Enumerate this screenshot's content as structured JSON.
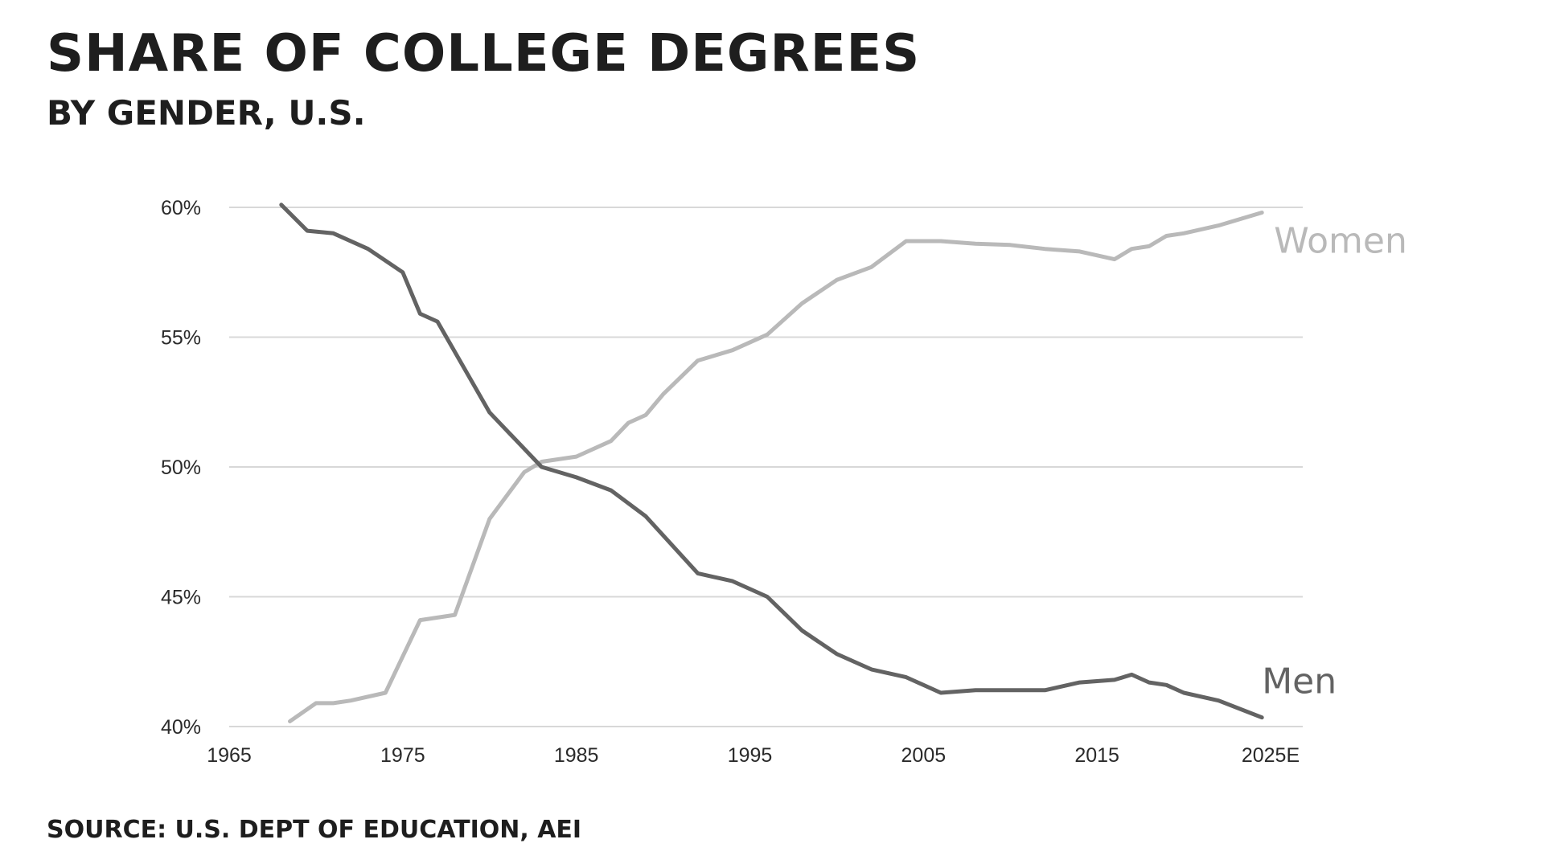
{
  "colors": {
    "women": "#b9b9b9",
    "men": "#636363",
    "grid": "#d8d8d8"
  },
  "chart_data": {
    "type": "line",
    "title": "SHARE OF COLLEGE DEGREES",
    "subtitle": "BY GENDER, U.S.",
    "source": "SOURCE: U.S. DEPT OF EDUCATION, AEI",
    "xlim": [
      1965,
      2025
    ],
    "ylim": [
      40,
      60
    ],
    "x_ticks": [
      {
        "value": 1965,
        "label": "1965"
      },
      {
        "value": 1975,
        "label": "1975"
      },
      {
        "value": 1985,
        "label": "1985"
      },
      {
        "value": 1995,
        "label": "1995"
      },
      {
        "value": 2005,
        "label": "2005"
      },
      {
        "value": 2015,
        "label": "2015"
      },
      {
        "value": 2025,
        "label": "2025E"
      }
    ],
    "y_ticks": [
      {
        "value": 60,
        "label": "60%"
      },
      {
        "value": 55,
        "label": "55%"
      },
      {
        "value": 50,
        "label": "50%"
      },
      {
        "value": 45,
        "label": "45%"
      },
      {
        "value": 40,
        "label": "40%"
      }
    ],
    "grid": true,
    "legend": "inline labels at line ends",
    "series": [
      {
        "name": "Women",
        "x": [
          1968.5,
          1970,
          1971,
          1972,
          1974,
          1975,
          1976,
          1978,
          1980,
          1982,
          1983,
          1985,
          1987,
          1988,
          1989,
          1990,
          1992,
          1994,
          1996,
          1998,
          2000,
          2002,
          2004,
          2006,
          2008,
          2010,
          2012,
          2014,
          2016,
          2017,
          2018,
          2019,
          2020,
          2022,
          2024.5
        ],
        "y": [
          40.2,
          40.9,
          40.9,
          41.0,
          41.3,
          42.7,
          44.1,
          44.3,
          48.0,
          49.8,
          50.2,
          50.4,
          51.0,
          51.7,
          52.0,
          52.8,
          54.1,
          54.5,
          55.1,
          56.3,
          57.2,
          57.7,
          58.7,
          58.7,
          58.6,
          58.55,
          58.4,
          58.3,
          58.0,
          58.4,
          58.5,
          58.9,
          59.0,
          59.3,
          59.8
        ]
      },
      {
        "name": "Men",
        "x": [
          1968,
          1969.5,
          1971,
          1973,
          1975,
          1976,
          1977,
          1980,
          1983,
          1985,
          1987,
          1989,
          1992,
          1994,
          1996,
          1998,
          2000,
          2002,
          2004,
          2006,
          2008,
          2010,
          2012,
          2014,
          2016,
          2017,
          2018,
          2019,
          2020,
          2022,
          2024.5
        ],
        "y": [
          60.1,
          59.1,
          59.0,
          58.4,
          57.5,
          55.9,
          55.6,
          52.1,
          50.0,
          49.6,
          49.1,
          48.1,
          45.9,
          45.6,
          45.0,
          43.7,
          42.8,
          42.2,
          41.9,
          41.3,
          41.4,
          41.4,
          41.4,
          41.7,
          41.8,
          42.0,
          41.7,
          41.6,
          41.3,
          41.0,
          40.35
        ]
      }
    ]
  }
}
